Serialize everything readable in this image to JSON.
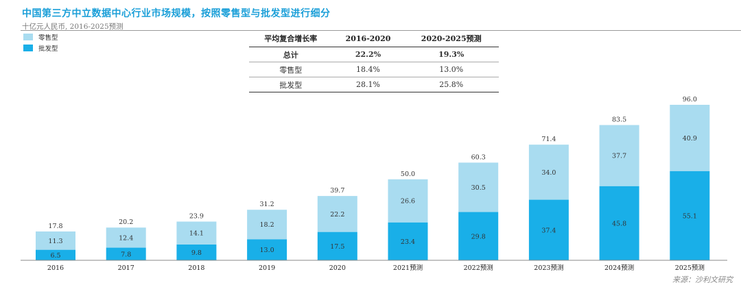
{
  "title": "中国第三方中立数据中心行业市场规模，按照零售型与批发型进行细分",
  "subtitle": "十亿元人民币, 2016-2025预测",
  "source": "来源：沙利文研究",
  "table": {
    "headers": [
      "平均复合增长率",
      "2016-2020",
      "2020-2025预测"
    ],
    "rows": [
      [
        "总计",
        "22.2%",
        "19.3%"
      ],
      [
        "零售型",
        "18.4%",
        "13.0%"
      ],
      [
        "批发型",
        "28.1%",
        "25.8%"
      ]
    ]
  },
  "colors": {
    "retail": "#a9dcf0",
    "wholesale": "#19afe8",
    "title": "#1b9fd8"
  },
  "chart_data": {
    "type": "bar",
    "stacked": true,
    "title": "中国第三方中立数据中心行业市场规模，按照零售型与批发型进行细分",
    "ylabel": "十亿元人民币",
    "categories": [
      "2016",
      "2017",
      "2018",
      "2019",
      "2020",
      "2021预测",
      "2022预测",
      "2023预测",
      "2024预测",
      "2025预测"
    ],
    "series": [
      {
        "name": "批发型",
        "values": [
          6.5,
          7.8,
          9.8,
          13.0,
          17.5,
          23.4,
          29.8,
          37.4,
          45.8,
          55.1
        ]
      },
      {
        "name": "零售型",
        "values": [
          11.3,
          12.4,
          14.1,
          18.2,
          22.2,
          26.6,
          30.5,
          34.0,
          37.7,
          40.9
        ]
      }
    ],
    "totals": [
      17.8,
      20.2,
      23.9,
      31.2,
      39.7,
      50.0,
      60.3,
      71.4,
      83.5,
      96.0
    ],
    "ylim": [
      0,
      96
    ],
    "grid": false,
    "legend": "top-left"
  }
}
